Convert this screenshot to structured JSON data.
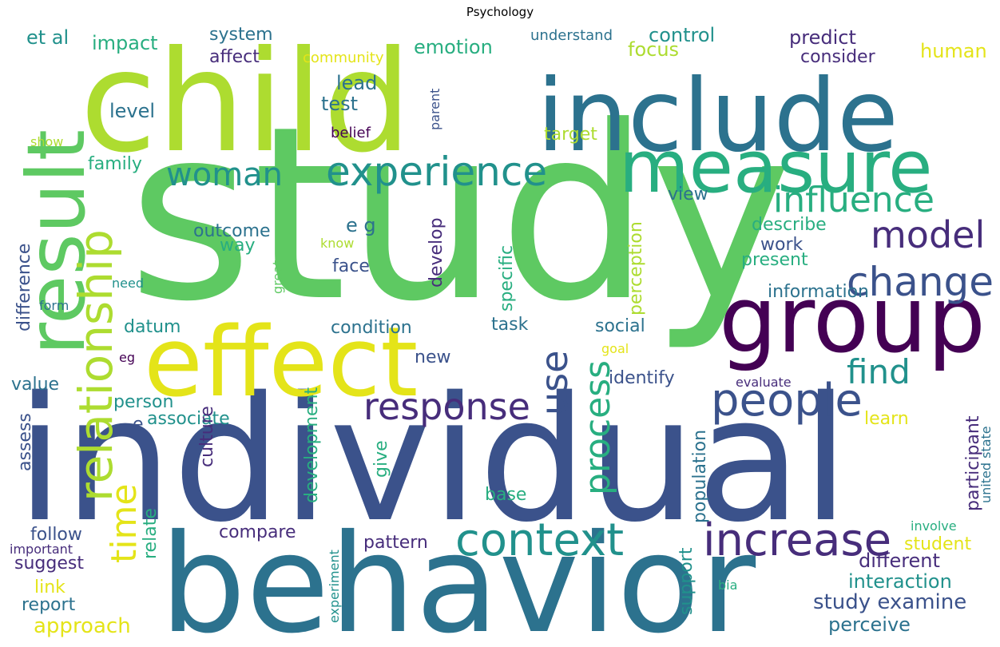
{
  "title": "Psychology",
  "palette": {
    "dark_purple": "#440154",
    "indigo": "#472d7b",
    "slate_blue": "#3b528b",
    "steel_blue": "#2c728e",
    "teal": "#21918c",
    "sea_green": "#28ae80",
    "green": "#5ec962",
    "lime": "#addc30",
    "yellow": "#e4e419"
  },
  "words": [
    {
      "text": "study",
      "color": "green",
      "size": 300,
      "rotate": 0
    },
    {
      "text": "individual",
      "color": "slate_blue",
      "size": 215,
      "rotate": 0
    },
    {
      "text": "child",
      "color": "lime",
      "size": 175,
      "rotate": 0
    },
    {
      "text": "behavior",
      "color": "steel_blue",
      "size": 170,
      "rotate": 0
    },
    {
      "text": "include",
      "color": "steel_blue",
      "size": 125,
      "rotate": 0
    },
    {
      "text": "effect",
      "color": "yellow",
      "size": 120,
      "rotate": 0
    },
    {
      "text": "group",
      "color": "dark_purple",
      "size": 115,
      "rotate": 0
    },
    {
      "text": "result",
      "color": "green",
      "size": 100,
      "rotate": -90
    },
    {
      "text": "measure",
      "color": "sea_green",
      "size": 90,
      "rotate": 0
    },
    {
      "text": "relationship",
      "color": "lime",
      "size": 58,
      "rotate": -90
    },
    {
      "text": "context",
      "color": "teal",
      "size": 56,
      "rotate": 0
    },
    {
      "text": "increase",
      "color": "indigo",
      "size": 56,
      "rotate": 0
    },
    {
      "text": "people",
      "color": "slate_blue",
      "size": 56,
      "rotate": 0
    },
    {
      "text": "change",
      "color": "slate_blue",
      "size": 50,
      "rotate": 0
    },
    {
      "text": "experience",
      "color": "teal",
      "size": 50,
      "rotate": 0
    },
    {
      "text": "response",
      "color": "indigo",
      "size": 46,
      "rotate": 0
    },
    {
      "text": "model",
      "color": "indigo",
      "size": 46,
      "rotate": 0
    },
    {
      "text": "use",
      "color": "slate_blue",
      "size": 46,
      "rotate": -90
    },
    {
      "text": "process",
      "color": "sea_green",
      "size": 44,
      "rotate": -90
    },
    {
      "text": "influence",
      "color": "sea_green",
      "size": 44,
      "rotate": 0
    },
    {
      "text": "time",
      "color": "yellow",
      "size": 44,
      "rotate": -90
    },
    {
      "text": "find",
      "color": "teal",
      "size": 42,
      "rotate": 0
    },
    {
      "text": "woman",
      "color": "teal",
      "size": 40,
      "rotate": 0
    },
    {
      "text": "approach",
      "color": "yellow",
      "size": 26,
      "rotate": 0
    },
    {
      "text": "study examine",
      "color": "slate_blue",
      "size": 26,
      "rotate": 0
    },
    {
      "text": "interaction",
      "color": "teal",
      "size": 24,
      "rotate": 0
    },
    {
      "text": "different",
      "color": "indigo",
      "size": 24,
      "rotate": 0
    },
    {
      "text": "perceive",
      "color": "steel_blue",
      "size": 24,
      "rotate": 0
    },
    {
      "text": "control",
      "color": "teal",
      "size": 24,
      "rotate": 0
    },
    {
      "text": "emotion",
      "color": "sea_green",
      "size": 24,
      "rotate": 0
    },
    {
      "text": "predict",
      "color": "indigo",
      "size": 24,
      "rotate": 0
    },
    {
      "text": "human",
      "color": "yellow",
      "size": 24,
      "rotate": 0
    },
    {
      "text": "impact",
      "color": "sea_green",
      "size": 24,
      "rotate": 0
    },
    {
      "text": "et al",
      "color": "teal",
      "size": 24,
      "rotate": 0
    },
    {
      "text": "system",
      "color": "steel_blue",
      "size": 22,
      "rotate": 0
    },
    {
      "text": "affect",
      "color": "indigo",
      "size": 22,
      "rotate": 0
    },
    {
      "text": "focus",
      "color": "lime",
      "size": 24,
      "rotate": 0
    },
    {
      "text": "consider",
      "color": "indigo",
      "size": 22,
      "rotate": 0
    },
    {
      "text": "lead",
      "color": "steel_blue",
      "size": 24,
      "rotate": 0
    },
    {
      "text": "test",
      "color": "steel_blue",
      "size": 24,
      "rotate": 0
    },
    {
      "text": "level",
      "color": "steel_blue",
      "size": 24,
      "rotate": 0
    },
    {
      "text": "family",
      "color": "sea_green",
      "size": 22,
      "rotate": 0
    },
    {
      "text": "target",
      "color": "lime",
      "size": 22,
      "rotate": 0
    },
    {
      "text": "view",
      "color": "steel_blue",
      "size": 22,
      "rotate": 0
    },
    {
      "text": "outcome",
      "color": "steel_blue",
      "size": 22,
      "rotate": 0
    },
    {
      "text": "way",
      "color": "sea_green",
      "size": 22,
      "rotate": 0
    },
    {
      "text": "e g",
      "color": "steel_blue",
      "size": 24,
      "rotate": 0
    },
    {
      "text": "face",
      "color": "slate_blue",
      "size": 22,
      "rotate": 0
    },
    {
      "text": "develop",
      "color": "indigo",
      "size": 22,
      "rotate": -90
    },
    {
      "text": "specific",
      "color": "sea_green",
      "size": 22,
      "rotate": -90
    },
    {
      "text": "perception",
      "color": "lime",
      "size": 22,
      "rotate": -90
    },
    {
      "text": "describe",
      "color": "sea_green",
      "size": 22,
      "rotate": 0
    },
    {
      "text": "work",
      "color": "slate_blue",
      "size": 22,
      "rotate": 0
    },
    {
      "text": "present",
      "color": "sea_green",
      "size": 22,
      "rotate": 0
    },
    {
      "text": "information",
      "color": "steel_blue",
      "size": 22,
      "rotate": 0
    },
    {
      "text": "difference",
      "color": "slate_blue",
      "size": 22,
      "rotate": -90
    },
    {
      "text": "datum",
      "color": "teal",
      "size": 22,
      "rotate": 0
    },
    {
      "text": "condition",
      "color": "steel_blue",
      "size": 22,
      "rotate": 0
    },
    {
      "text": "task",
      "color": "steel_blue",
      "size": 22,
      "rotate": 0
    },
    {
      "text": "social",
      "color": "steel_blue",
      "size": 22,
      "rotate": 0
    },
    {
      "text": "new",
      "color": "slate_blue",
      "size": 22,
      "rotate": 0
    },
    {
      "text": "identify",
      "color": "slate_blue",
      "size": 22,
      "rotate": 0
    },
    {
      "text": "value",
      "color": "steel_blue",
      "size": 22,
      "rotate": 0
    },
    {
      "text": "person",
      "color": "teal",
      "size": 22,
      "rotate": 0
    },
    {
      "text": "associate",
      "color": "teal",
      "size": 22,
      "rotate": 0
    },
    {
      "text": "e",
      "color": "slate_blue",
      "size": 22,
      "rotate": 0
    },
    {
      "text": "culture",
      "color": "indigo",
      "size": 22,
      "rotate": -90
    },
    {
      "text": "development",
      "color": "sea_green",
      "size": 22,
      "rotate": -90
    },
    {
      "text": "give",
      "color": "sea_green",
      "size": 22,
      "rotate": -90
    },
    {
      "text": "relate",
      "color": "sea_green",
      "size": 22,
      "rotate": -90
    },
    {
      "text": "base",
      "color": "sea_green",
      "size": 22,
      "rotate": 0
    },
    {
      "text": "population",
      "color": "steel_blue",
      "size": 22,
      "rotate": -90
    },
    {
      "text": "support",
      "color": "teal",
      "size": 22,
      "rotate": -90
    },
    {
      "text": "participant",
      "color": "indigo",
      "size": 22,
      "rotate": -90
    },
    {
      "text": "learn",
      "color": "yellow",
      "size": 22,
      "rotate": 0
    },
    {
      "text": "student",
      "color": "yellow",
      "size": 22,
      "rotate": 0
    },
    {
      "text": "assess",
      "color": "slate_blue",
      "size": 22,
      "rotate": -90
    },
    {
      "text": "follow",
      "color": "slate_blue",
      "size": 22,
      "rotate": 0
    },
    {
      "text": "compare",
      "color": "indigo",
      "size": 22,
      "rotate": 0
    },
    {
      "text": "pattern",
      "color": "indigo",
      "size": 22,
      "rotate": 0
    },
    {
      "text": "suggest",
      "color": "indigo",
      "size": 22,
      "rotate": 0
    },
    {
      "text": "link",
      "color": "yellow",
      "size": 22,
      "rotate": 0
    },
    {
      "text": "report",
      "color": "steel_blue",
      "size": 22,
      "rotate": 0
    },
    {
      "text": "community",
      "color": "yellow",
      "size": 18,
      "rotate": 0
    },
    {
      "text": "understand",
      "color": "steel_blue",
      "size": 18,
      "rotate": 0
    },
    {
      "text": "belief",
      "color": "dark_purple",
      "size": 18,
      "rotate": 0
    },
    {
      "text": "parent",
      "color": "slate_blue",
      "size": 16,
      "rotate": -90
    },
    {
      "text": "show",
      "color": "lime",
      "size": 16,
      "rotate": 0
    },
    {
      "text": "know",
      "color": "lime",
      "size": 16,
      "rotate": 0
    },
    {
      "text": "need",
      "color": "teal",
      "size": 16,
      "rotate": 0
    },
    {
      "text": "great",
      "color": "green",
      "size": 16,
      "rotate": -90
    },
    {
      "text": "form",
      "color": "steel_blue",
      "size": 16,
      "rotate": 0
    },
    {
      "text": "eg",
      "color": "dark_purple",
      "size": 16,
      "rotate": 0
    },
    {
      "text": "goal",
      "color": "yellow",
      "size": 16,
      "rotate": 0
    },
    {
      "text": "evaluate",
      "color": "indigo",
      "size": 16,
      "rotate": 0
    },
    {
      "text": "united state",
      "color": "steel_blue",
      "size": 16,
      "rotate": -90
    },
    {
      "text": "involve",
      "color": "sea_green",
      "size": 16,
      "rotate": 0
    },
    {
      "text": "important",
      "color": "indigo",
      "size": 16,
      "rotate": 0
    },
    {
      "text": "experiment",
      "color": "teal",
      "size": 16,
      "rotate": -90
    },
    {
      "text": "bia",
      "color": "sea_green",
      "size": 16,
      "rotate": 0
    }
  ]
}
